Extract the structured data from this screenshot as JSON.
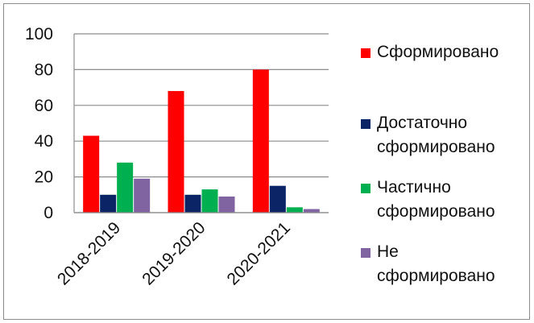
{
  "chart_data": {
    "type": "bar",
    "categories": [
      "2018-2019",
      "2019-2020",
      "2020-2021"
    ],
    "series": [
      {
        "name": "Сформировано",
        "color": "#ff0000",
        "values": [
          43,
          68,
          80
        ]
      },
      {
        "name": "Достаточно\nсформировано",
        "color": "#0b2466",
        "values": [
          10,
          10,
          15
        ]
      },
      {
        "name": "Частично\nсформировано",
        "color": "#00b050",
        "values": [
          28,
          13,
          3
        ]
      },
      {
        "name": "Не\nсформировано",
        "color": "#8064a2",
        "values": [
          19,
          9,
          2
        ]
      }
    ],
    "yticks": [
      "0",
      "20",
      "40",
      "60",
      "80",
      "100"
    ],
    "ylim": [
      0,
      100
    ],
    "grid": true,
    "legend_position": "right"
  }
}
